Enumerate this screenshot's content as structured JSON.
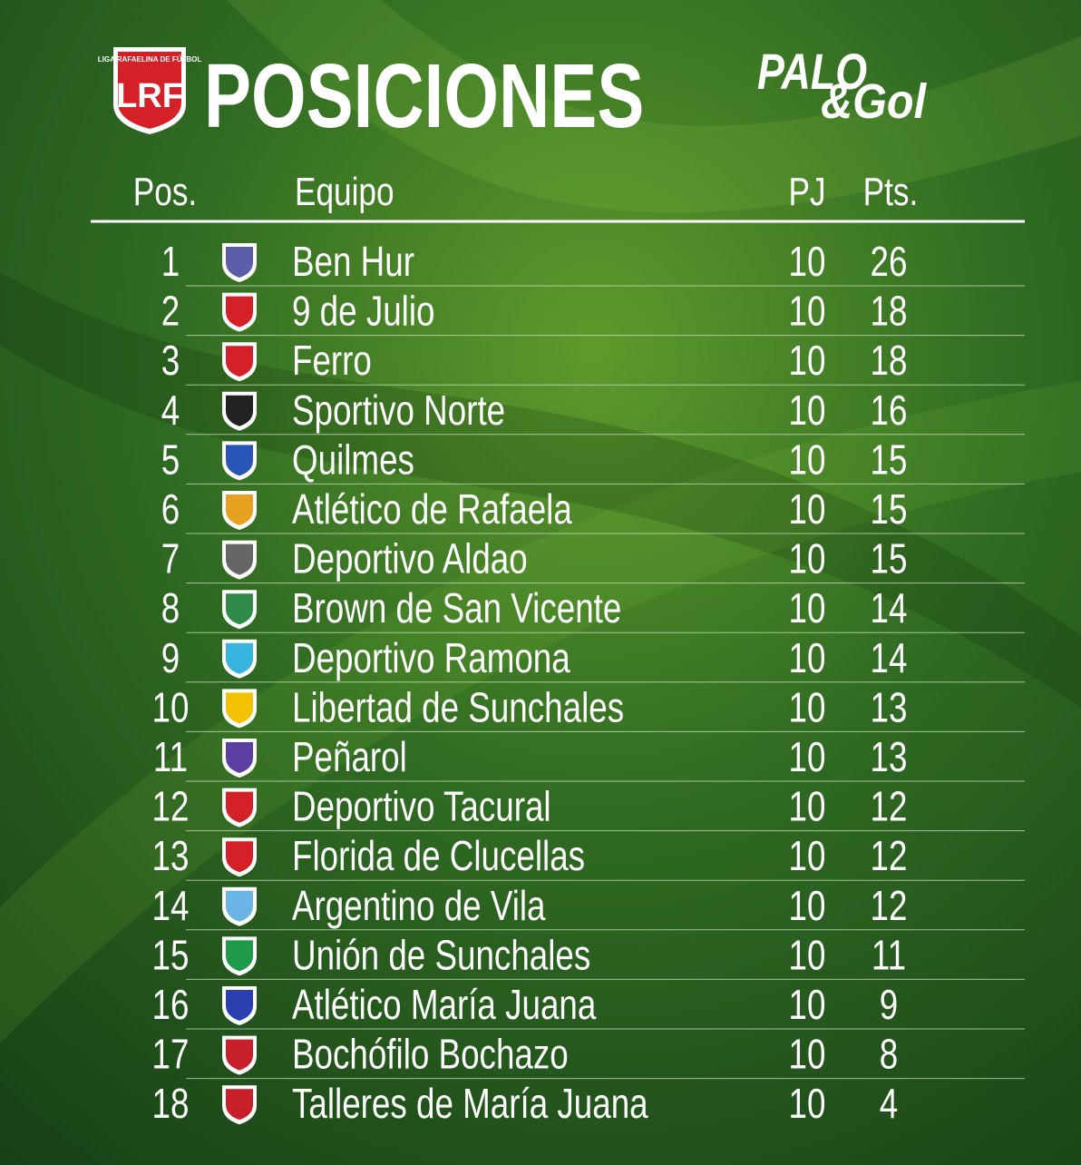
{
  "header": {
    "logo_small": "LIGA RAFAELINA DE FÚTBOL",
    "logo": "LRF",
    "title": "POSICIONES",
    "brand_top": "PALO",
    "brand_bottom": "&Gol"
  },
  "table": {
    "columns": [
      "Pos.",
      "Equipo",
      "PJ",
      "Pts."
    ],
    "rows": [
      [
        1,
        "Ben Hur",
        10,
        26
      ],
      [
        2,
        "9 de Julio",
        10,
        18
      ],
      [
        3,
        "Ferro",
        10,
        18
      ],
      [
        4,
        "Sportivo Norte",
        10,
        16
      ],
      [
        5,
        "Quilmes",
        10,
        15
      ],
      [
        6,
        "Atlético de Rafaela",
        10,
        15
      ],
      [
        7,
        "Deportivo Aldao",
        10,
        15
      ],
      [
        8,
        "Brown de San Vicente",
        10,
        14
      ],
      [
        9,
        "Deportivo Ramona",
        10,
        14
      ],
      [
        10,
        "Libertad de Sunchales",
        10,
        13
      ],
      [
        11,
        "Peñarol",
        10,
        13
      ],
      [
        12,
        "Deportivo Tacural",
        10,
        12
      ],
      [
        13,
        "Florida de Clucellas",
        10,
        12
      ],
      [
        14,
        "Argentino de Vila",
        10,
        12
      ],
      [
        15,
        "Unión de Sunchales",
        10,
        11
      ],
      [
        16,
        "Atlético María Juana",
        10,
        9
      ],
      [
        17,
        "Bochófilo Bochazo",
        10,
        8
      ],
      [
        18,
        "Talleres de María Juana",
        10,
        4
      ]
    ]
  }
}
